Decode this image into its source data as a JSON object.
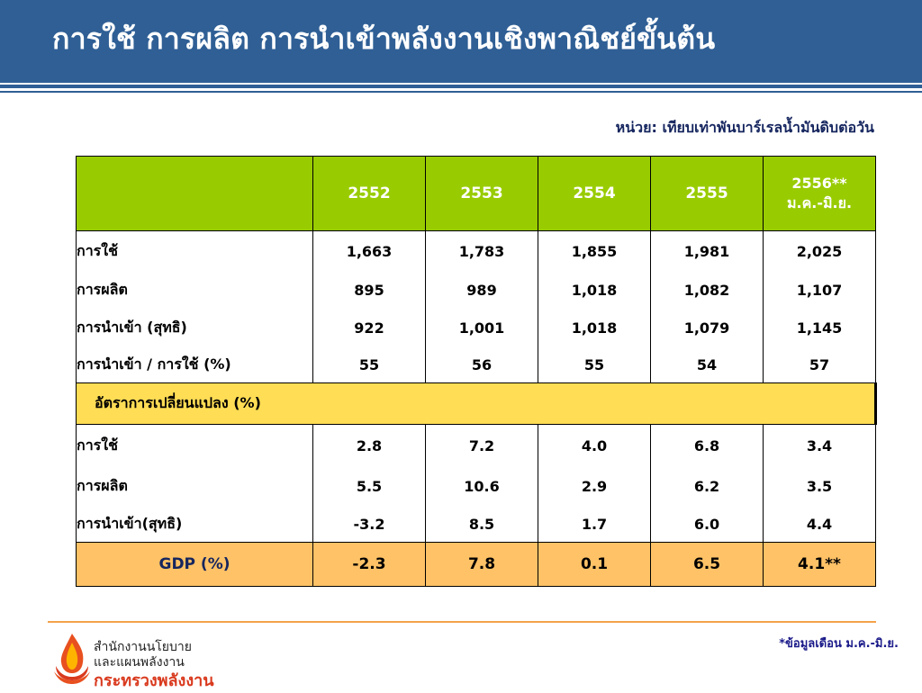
{
  "title": "การใช้ การผลิต การนำเข้าพลังงานเชิงพาณิชย์ขั้นต้น",
  "unit": "หน่วย: เทียบเท่าพันบาร์เรลน้ำมันดิบต่อวัน",
  "table": {
    "headers": [
      "2552",
      "2553",
      "2554",
      "2555"
    ],
    "last_header_line1": "2556**",
    "last_header_line2": "ม.ค.-มิ.ย.",
    "rows": [
      {
        "label": "การใช้",
        "values": [
          "1,663",
          "1,783",
          "1,855",
          "1,981",
          "2,025"
        ]
      },
      {
        "label": "การผลิต",
        "values": [
          "895",
          "989",
          "1,018",
          "1,082",
          "1,107"
        ]
      },
      {
        "label": "การนำเข้า (สุทธิ)",
        "values": [
          "922",
          "1,001",
          "1,018",
          "1,079",
          "1,145"
        ]
      },
      {
        "label": "การนำเข้า / การใช้ (%)",
        "values": [
          "55",
          "56",
          "55",
          "54",
          "57"
        ]
      }
    ],
    "change_title": "อัตราการเปลี่ยนแปลง (%)",
    "change_rows": [
      {
        "label": "การใช้",
        "values": [
          "2.8",
          "7.2",
          "4.0",
          "6.8",
          "3.4"
        ]
      },
      {
        "label": "การผลิต",
        "values": [
          "5.5",
          "10.6",
          "2.9",
          "6.2",
          "3.5"
        ]
      },
      {
        "label": "การนำเข้า(สุทธิ)",
        "values": [
          "-3.2",
          "8.5",
          "1.7",
          "6.0",
          "4.4"
        ]
      }
    ],
    "gdp": {
      "label": "GDP (%)",
      "values": [
        "-2.3",
        "7.8",
        "0.1",
        "6.5",
        "4.1**"
      ]
    }
  },
  "footnote": "*ข้อมูลเดือน ม.ค.-มิ.ย.",
  "org": {
    "line1": "สำนักงานนโยบาย",
    "line2": "และแผนพลังงาน",
    "line3": "กระทรวงพลังงาน"
  },
  "colors": {
    "title_bar": "#2f5f95",
    "header_green": "#99cc00",
    "change_yellow": "#ffdd55",
    "gdp_orange": "#ffc266",
    "footer_rule": "#f4a24a",
    "ministry_red": "#d93a1e"
  },
  "icons": {
    "logo": "flame-logo-icon"
  }
}
